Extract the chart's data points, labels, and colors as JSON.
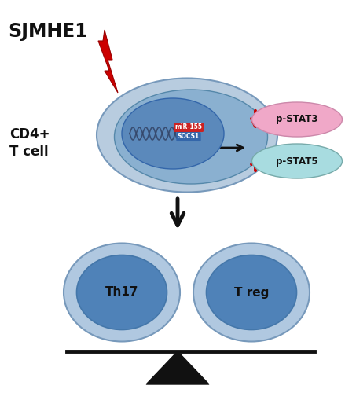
{
  "sjmhe1_text": "SJMHE1",
  "cd4_text": "CD4+\nT cell",
  "mir155_text": "miR-155",
  "socs1_text": "SOCS1",
  "pstat3_text": "p-STAT3",
  "pstat5_text": "p-STAT5",
  "th17_text": "Th17",
  "treg_text": "T reg",
  "cell_outer_color": "#b8ccdf",
  "cell_inner_color": "#8ab0d0",
  "nucleus_color": "#5b89bb",
  "th17_outer_color": "#b0c8e0",
  "th17_mid_color": "#7aaad0",
  "th17_inner_color": "#4f82b8",
  "treg_outer_color": "#b0c8e0",
  "treg_mid_color": "#7aaad0",
  "treg_inner_color": "#4f82b8",
  "pstat3_color": "#f0a8c8",
  "pstat5_color": "#a8dce0",
  "mir155_bg": "#cc2222",
  "socs1_bg": "#3366aa",
  "arrow_color": "#cc0000",
  "black": "#111111",
  "background": "#ffffff",
  "wave_color": "#334466"
}
